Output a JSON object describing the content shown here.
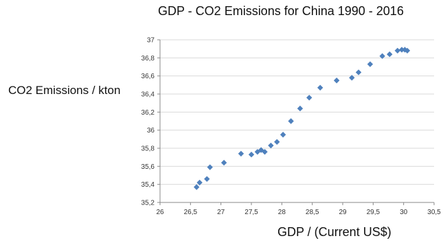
{
  "chart_data": {
    "type": "scatter",
    "title": "GDP - CO2 Emissions for China 1990 - 2016",
    "xlabel": "GDP / (Current US$)",
    "ylabel": "CO2 Emissions / kton",
    "xlim": [
      26,
      30.5
    ],
    "ylim": [
      35.2,
      37
    ],
    "xticks": [
      "26",
      "26,5",
      "27",
      "27,5",
      "28",
      "28,5",
      "29",
      "29,5",
      "30",
      "30,5"
    ],
    "yticks": [
      "35,2",
      "35,4",
      "35,6",
      "35,8",
      "36",
      "36,2",
      "36,4",
      "36,6",
      "36,8",
      "37"
    ],
    "grid": "horizontal",
    "marker_color": "#4f81bd",
    "points": [
      {
        "x": 26.6,
        "y": 35.37
      },
      {
        "x": 26.65,
        "y": 35.42
      },
      {
        "x": 26.77,
        "y": 35.46
      },
      {
        "x": 26.82,
        "y": 35.59
      },
      {
        "x": 27.05,
        "y": 35.64
      },
      {
        "x": 27.33,
        "y": 35.74
      },
      {
        "x": 27.5,
        "y": 35.73
      },
      {
        "x": 27.6,
        "y": 35.76
      },
      {
        "x": 27.66,
        "y": 35.78
      },
      {
        "x": 27.72,
        "y": 35.76
      },
      {
        "x": 27.82,
        "y": 35.83
      },
      {
        "x": 27.92,
        "y": 35.87
      },
      {
        "x": 28.02,
        "y": 35.95
      },
      {
        "x": 28.15,
        "y": 36.1
      },
      {
        "x": 28.3,
        "y": 36.24
      },
      {
        "x": 28.45,
        "y": 36.36
      },
      {
        "x": 28.63,
        "y": 36.47
      },
      {
        "x": 28.9,
        "y": 36.55
      },
      {
        "x": 29.15,
        "y": 36.58
      },
      {
        "x": 29.26,
        "y": 36.64
      },
      {
        "x": 29.45,
        "y": 36.73
      },
      {
        "x": 29.65,
        "y": 36.82
      },
      {
        "x": 29.77,
        "y": 36.84
      },
      {
        "x": 29.9,
        "y": 36.88
      },
      {
        "x": 29.97,
        "y": 36.89
      },
      {
        "x": 30.02,
        "y": 36.89
      },
      {
        "x": 30.06,
        "y": 36.88
      }
    ]
  }
}
